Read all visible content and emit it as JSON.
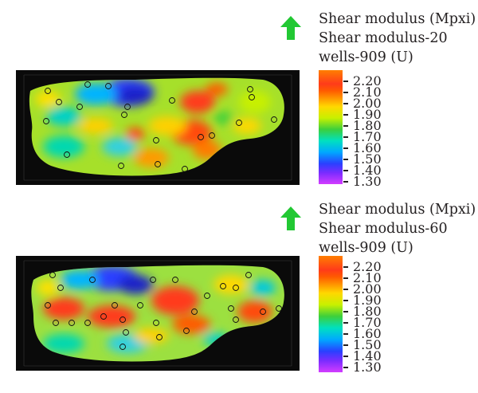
{
  "panels": [
    {
      "id": "top",
      "legend": {
        "line1": "Shear modulus (Mpxi)",
        "line2": "Shear modulus-20",
        "line3": "wells-909 (U)"
      },
      "ticks": [
        "2.20",
        "2.10",
        "2.00",
        "1.90",
        "1.80",
        "1.70",
        "1.60",
        "1.50",
        "1.40",
        "1.30"
      ],
      "colors": {
        "north_arrow": "#22c833",
        "frame": "#0a0a0a"
      }
    },
    {
      "id": "bottom",
      "legend": {
        "line1": "Shear modulus (Mpxi)",
        "line2": "Shear modulus-60",
        "line3": "wells-909 (U)"
      },
      "ticks": [
        "2.20",
        "2.10",
        "2.00",
        "1.90",
        "1.80",
        "1.70",
        "1.60",
        "1.50",
        "1.40",
        "1.30"
      ],
      "colors": {
        "north_arrow": "#22c833",
        "frame": "#0a0a0a"
      }
    }
  ]
}
